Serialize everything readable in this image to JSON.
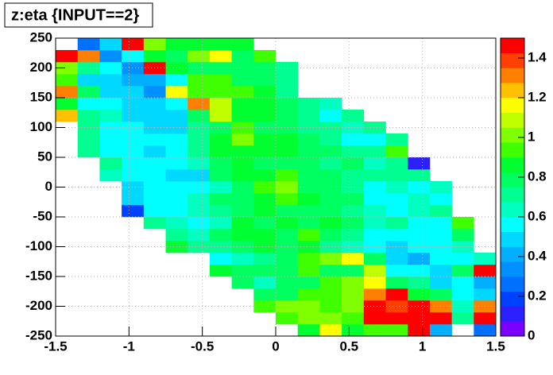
{
  "chart_data": {
    "type": "heatmap",
    "title": "z:eta {INPUT==2}",
    "xlim": [
      -1.5,
      1.5
    ],
    "ylim": [
      -250,
      250
    ],
    "zlim": [
      0,
      1.5
    ],
    "xticks": [
      -1.5,
      -1,
      -0.5,
      0,
      0.5,
      1,
      1.5
    ],
    "yticks": [
      -250,
      -200,
      -150,
      -100,
      -50,
      0,
      50,
      100,
      150,
      200,
      250
    ],
    "zticks": [
      0,
      0.2,
      0.4,
      0.6,
      0.8,
      1,
      1.2,
      1.4
    ],
    "grid": true,
    "xbins": [
      -1.5,
      -1.35,
      -1.2,
      -1.05,
      -0.9,
      -0.75,
      -0.6,
      -0.45,
      -0.3,
      -0.15,
      0,
      0.15,
      0.3,
      0.45,
      0.6,
      0.75,
      0.9,
      1.05,
      1.2,
      1.35,
      1.5
    ],
    "ybins": [
      -250,
      -230,
      -210,
      -190,
      -170,
      -150,
      -130,
      -110,
      -90,
      -70,
      -50,
      -30,
      -10,
      10,
      30,
      50,
      70,
      90,
      110,
      130,
      150,
      170,
      190,
      210,
      230,
      250
    ],
    "palette": [
      "#7b00ff",
      "#2c20ff",
      "#0040ff",
      "#0070ff",
      "#0090ff",
      "#00b0ff",
      "#00d8ff",
      "#00ffff",
      "#00ffc0",
      "#00ff90",
      "#00ff60",
      "#00ff30",
      "#40ff00",
      "#80ff00",
      "#c0ff00",
      "#ffff00",
      "#ffc000",
      "#ff8000",
      "#ff4000",
      "#ff0000"
    ],
    "z": [
      [
        null,
        null,
        null,
        null,
        null,
        null,
        null,
        null,
        null,
        null,
        null,
        0.85,
        1.15,
        0.85,
        0.9,
        0.95,
        1.45,
        0.4,
        null,
        0.25
      ],
      [
        null,
        null,
        null,
        null,
        null,
        null,
        null,
        null,
        null,
        null,
        0.95,
        1.0,
        1.0,
        0.95,
        1.45,
        1.45,
        1.45,
        1.45,
        0.7,
        1.45
      ],
      [
        null,
        null,
        null,
        null,
        null,
        null,
        null,
        null,
        null,
        0.95,
        1.0,
        1.0,
        0.95,
        1.0,
        1.45,
        1.4,
        1.45,
        1.3,
        0.65,
        1.3
      ],
      [
        null,
        null,
        null,
        null,
        null,
        null,
        null,
        null,
        null,
        0.75,
        0.8,
        0.95,
        0.95,
        1.0,
        1.3,
        1.45,
        0.85,
        0.75,
        0.6,
        0.45
      ],
      [
        null,
        null,
        null,
        null,
        null,
        null,
        null,
        null,
        0.75,
        0.65,
        0.75,
        0.8,
        0.95,
        1.0,
        1.15,
        0.8,
        0.7,
        0.45,
        0.55,
        0.4
      ],
      [
        null,
        null,
        null,
        null,
        null,
        null,
        null,
        0.85,
        0.75,
        0.75,
        0.8,
        0.9,
        0.8,
        0.75,
        1.1,
        0.6,
        0.55,
        0.5,
        0.8,
        1.45
      ],
      [
        null,
        null,
        null,
        null,
        null,
        null,
        null,
        0.6,
        0.65,
        0.7,
        0.8,
        0.9,
        1.0,
        1.15,
        0.8,
        0.5,
        0.4,
        0.55,
        0.6,
        0.65
      ],
      [
        null,
        null,
        null,
        null,
        null,
        0.85,
        0.7,
        0.7,
        0.8,
        0.85,
        0.8,
        0.85,
        0.7,
        0.65,
        0.55,
        0.5,
        0.55,
        0.6,
        0.65,
        null
      ],
      [
        null,
        null,
        null,
        null,
        null,
        0.7,
        0.65,
        0.75,
        0.85,
        0.85,
        0.8,
        0.95,
        0.8,
        0.7,
        0.55,
        0.55,
        0.55,
        0.55,
        0.8,
        null
      ],
      [
        null,
        null,
        null,
        null,
        0.7,
        0.65,
        0.6,
        0.65,
        0.85,
        0.8,
        0.85,
        0.8,
        0.85,
        0.75,
        0.65,
        0.7,
        0.6,
        0.6,
        0.95,
        null
      ],
      [
        null,
        null,
        null,
        0.2,
        0.6,
        0.6,
        0.65,
        0.7,
        0.8,
        0.85,
        0.75,
        0.8,
        0.8,
        0.7,
        0.65,
        0.6,
        0.65,
        0.7,
        null,
        null
      ],
      [
        null,
        null,
        null,
        0.5,
        0.55,
        0.55,
        0.65,
        0.75,
        0.8,
        0.85,
        0.95,
        0.85,
        0.8,
        0.75,
        0.6,
        0.6,
        0.65,
        0.6,
        null,
        null
      ],
      [
        null,
        null,
        null,
        0.5,
        0.55,
        0.55,
        0.6,
        0.65,
        0.8,
        0.9,
        1.0,
        0.8,
        0.75,
        0.7,
        0.6,
        0.65,
        0.6,
        0.65,
        null,
        null
      ],
      [
        null,
        null,
        0.65,
        0.6,
        0.55,
        0.5,
        0.5,
        0.75,
        0.85,
        0.85,
        0.9,
        0.8,
        0.75,
        0.7,
        0.7,
        0.7,
        0.7,
        null,
        null,
        null
      ],
      [
        null,
        null,
        0.7,
        0.6,
        0.55,
        0.55,
        0.65,
        0.8,
        0.85,
        0.8,
        0.8,
        0.75,
        0.7,
        0.75,
        0.65,
        0.7,
        0.1,
        null,
        null,
        null
      ],
      [
        null,
        0.7,
        0.6,
        0.55,
        0.45,
        0.55,
        0.7,
        0.85,
        0.85,
        0.85,
        0.85,
        0.75,
        0.75,
        0.7,
        0.7,
        0.95,
        null,
        null,
        null,
        null
      ],
      [
        null,
        0.7,
        0.6,
        0.6,
        0.55,
        0.6,
        0.7,
        0.85,
        1.0,
        0.85,
        0.85,
        0.75,
        0.7,
        0.55,
        0.6,
        0.7,
        null,
        null,
        null,
        null
      ],
      [
        null,
        0.7,
        0.55,
        0.55,
        0.45,
        0.5,
        0.7,
        0.8,
        0.9,
        0.8,
        0.8,
        0.7,
        0.7,
        0.65,
        0.7,
        null,
        null,
        null,
        null,
        null
      ],
      [
        1.25,
        0.7,
        0.65,
        0.45,
        0.45,
        0.5,
        0.75,
        1.05,
        0.85,
        0.85,
        0.8,
        0.7,
        0.6,
        0.7,
        null,
        null,
        null,
        null,
        null,
        null
      ],
      [
        0.85,
        0.55,
        0.6,
        0.45,
        0.45,
        0.55,
        1.3,
        1.05,
        0.85,
        0.85,
        0.8,
        0.7,
        0.65,
        null,
        null,
        null,
        null,
        null,
        null,
        null
      ],
      [
        1.3,
        0.75,
        0.45,
        0.45,
        0.35,
        1.15,
        0.95,
        0.95,
        0.9,
        0.85,
        0.7,
        null,
        null,
        null,
        null,
        null,
        null,
        null,
        null,
        null
      ],
      [
        0.9,
        0.5,
        0.5,
        0.4,
        0.4,
        0.6,
        0.9,
        0.95,
        0.8,
        0.8,
        0.7,
        null,
        null,
        null,
        null,
        null,
        null,
        null,
        null,
        null
      ],
      [
        1.0,
        0.7,
        0.6,
        0.35,
        1.45,
        0.85,
        0.8,
        0.8,
        0.8,
        0.75,
        0.7,
        null,
        null,
        null,
        null,
        null,
        null,
        null,
        null,
        null
      ],
      [
        1.45,
        1.3,
        0.35,
        0.55,
        0.85,
        0.8,
        1.0,
        1.15,
        0.75,
        0.9,
        null,
        null,
        null,
        null,
        null,
        null,
        null,
        null,
        null,
        null
      ],
      [
        null,
        0.25,
        0.5,
        1.45,
        1.0,
        0.85,
        0.85,
        0.85,
        0.85,
        null,
        null,
        null,
        null,
        null,
        null,
        null,
        null,
        null,
        null,
        null
      ]
    ]
  }
}
